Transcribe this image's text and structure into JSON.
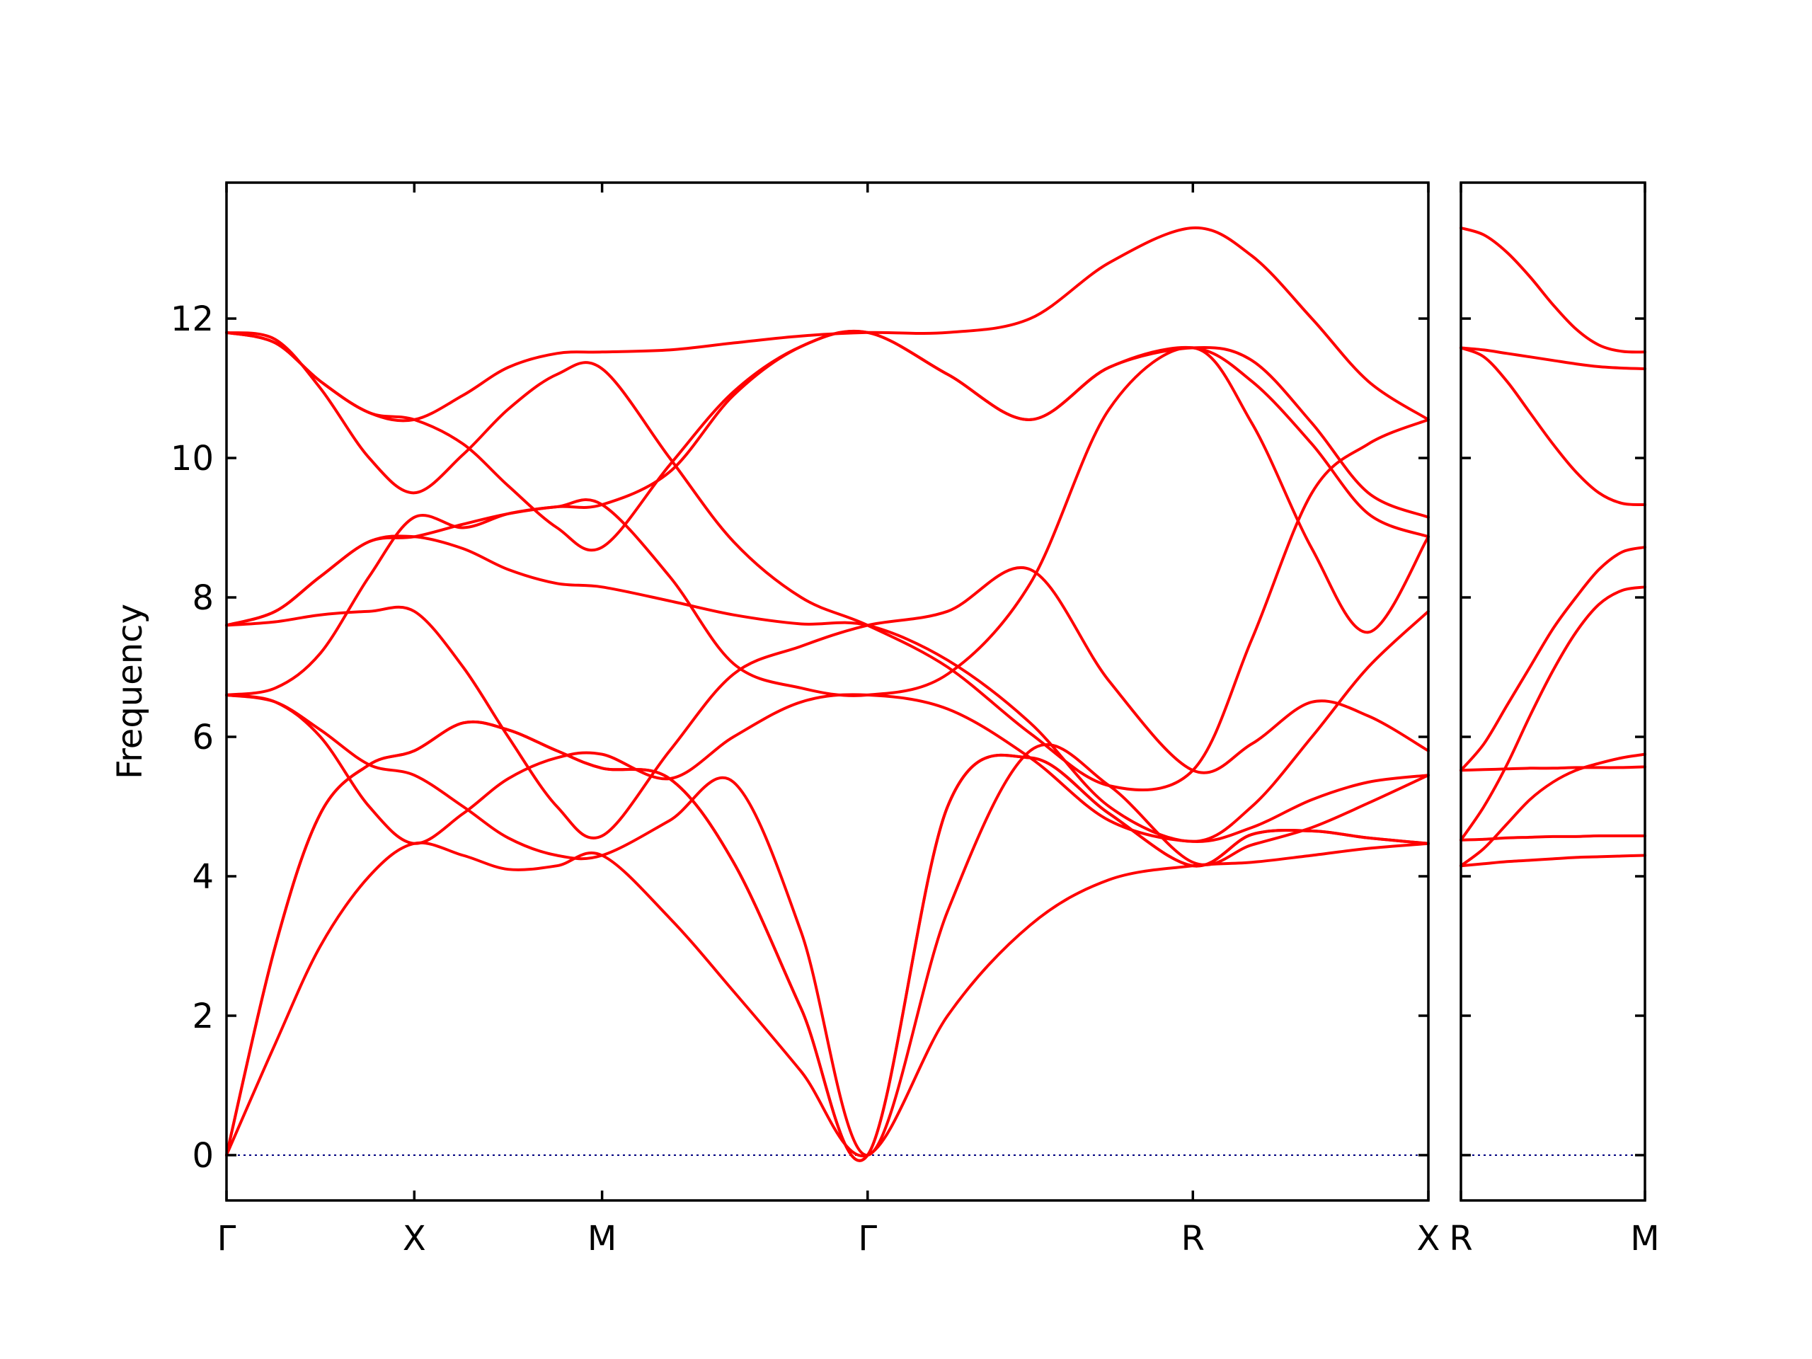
{
  "colors": {
    "band": "#ff0000",
    "zero_line": "#000080",
    "frame": "#000000"
  },
  "chart_data": {
    "type": "line",
    "title": "",
    "xlabel": "",
    "ylabel": "Frequency",
    "ylim": [
      -0.65,
      13.95
    ],
    "grid": false,
    "yticks": [
      0,
      2,
      4,
      6,
      8,
      10,
      12
    ],
    "panels": [
      {
        "name": "left",
        "xlim": [
          0,
          3.2
        ],
        "high_symmetry_points": [
          {
            "label": "Γ",
            "x": 0.0
          },
          {
            "label": "X",
            "x": 0.5
          },
          {
            "label": "M",
            "x": 1.0
          },
          {
            "label": "Γ",
            "x": 1.707
          },
          {
            "label": "R",
            "x": 2.573
          },
          {
            "label": "X",
            "x": 3.2
          }
        ],
        "series": [
          {
            "x": [
              0,
              0.13,
              0.25,
              0.38,
              0.5,
              0.63,
              0.75,
              0.88,
              1.0,
              1.18,
              1.35,
              1.53,
              1.707,
              1.92,
              2.14,
              2.35,
              2.573,
              2.73,
              2.89,
              3.04,
              3.2
            ],
            "y": [
              0,
              1.6,
              3.0,
              4.0,
              4.47,
              4.3,
              4.1,
              4.15,
              4.3,
              3.4,
              2.35,
              1.2,
              0,
              2.0,
              3.3,
              3.95,
              4.15,
              4.2,
              4.3,
              4.4,
              4.47
            ]
          },
          {
            "x": [
              0,
              0.13,
              0.25,
              0.38,
              0.5,
              0.63,
              0.75,
              0.88,
              1.0,
              1.18,
              1.35,
              1.53,
              1.707,
              1.92,
              2.14,
              2.35,
              2.573,
              2.73,
              2.89,
              3.04,
              3.2
            ],
            "y": [
              0,
              3.0,
              4.9,
              5.6,
              5.8,
              6.2,
              6.1,
              5.8,
              5.55,
              5.4,
              4.2,
              2.1,
              0,
              5.0,
              5.7,
              4.9,
              4.15,
              4.6,
              4.65,
              4.55,
              4.47
            ]
          },
          {
            "x": [
              0,
              0.13,
              0.25,
              0.38,
              0.5,
              0.63,
              0.75,
              0.88,
              1.0,
              1.18,
              1.35,
              1.53,
              1.707,
              1.92,
              2.14,
              2.35,
              2.573,
              2.73,
              2.89,
              3.04,
              3.2
            ],
            "y": [
              0,
              3.0,
              4.9,
              5.6,
              5.8,
              6.2,
              6.1,
              5.8,
              5.55,
              5.4,
              4.2,
              2.1,
              0,
              5.0,
              5.7,
              4.9,
              4.15,
              4.6,
              4.65,
              4.55,
              4.47
            ]
          },
          {
            "x": [
              0,
              0.13,
              0.25,
              0.38,
              0.5,
              0.63,
              0.75,
              0.88,
              1.0,
              1.18,
              1.35,
              1.53,
              1.707,
              1.92,
              2.14,
              2.35,
              2.573,
              2.73,
              2.89,
              3.04,
              3.2
            ],
            "y": [
              6.6,
              6.5,
              6.1,
              5.6,
              5.45,
              5.0,
              4.55,
              4.3,
              4.3,
              4.8,
              5.35,
              3.2,
              0,
              3.5,
              5.8,
              5.3,
              4.2,
              4.45,
              4.7,
              5.05,
              5.45
            ]
          },
          {
            "x": [
              0,
              0.13,
              0.25,
              0.38,
              0.5,
              0.63,
              0.75,
              0.88,
              1.0,
              1.18,
              1.35,
              1.53,
              1.707,
              1.92,
              2.14,
              2.35,
              2.573,
              2.73,
              2.89,
              3.04,
              3.2
            ],
            "y": [
              6.6,
              6.5,
              6.0,
              5.0,
              4.47,
              4.9,
              5.4,
              5.7,
              5.75,
              5.4,
              6.0,
              6.5,
              6.6,
              6.4,
              5.7,
              4.8,
              4.5,
              4.7,
              5.1,
              5.35,
              5.45
            ]
          },
          {
            "x": [
              0,
              0.13,
              0.25,
              0.38,
              0.5,
              0.63,
              0.75,
              0.88,
              1.0,
              1.18,
              1.35,
              1.53,
              1.707,
              1.92,
              2.14,
              2.35,
              2.573,
              2.73,
              2.89,
              3.04,
              3.2
            ],
            "y": [
              6.6,
              6.7,
              7.2,
              8.3,
              9.15,
              9.0,
              9.2,
              9.3,
              9.33,
              9.8,
              10.9,
              11.6,
              11.8,
              11.2,
              10.55,
              11.3,
              11.58,
              11.1,
              10.2,
              9.2,
              8.87
            ]
          },
          {
            "x": [
              0,
              0.13,
              0.25,
              0.38,
              0.5,
              0.63,
              0.75,
              0.88,
              1.0,
              1.18,
              1.35,
              1.53,
              1.707,
              1.92,
              2.14,
              2.35,
              2.573,
              2.73,
              2.89,
              3.04,
              3.2
            ],
            "y": [
              7.6,
              7.65,
              7.75,
              7.8,
              7.8,
              7.0,
              6.0,
              5.0,
              4.58,
              5.8,
              6.9,
              7.3,
              7.6,
              7.8,
              8.4,
              6.8,
              5.52,
              5.9,
              6.5,
              6.3,
              5.8
            ]
          },
          {
            "x": [
              0,
              0.13,
              0.25,
              0.38,
              0.5,
              0.63,
              0.75,
              0.88,
              1.0,
              1.18,
              1.35,
              1.53,
              1.707,
              1.92,
              2.14,
              2.35,
              2.573,
              2.73,
              2.89,
              3.04,
              3.2
            ],
            "y": [
              7.6,
              7.8,
              8.3,
              8.8,
              8.87,
              8.7,
              8.4,
              8.2,
              8.15,
              7.95,
              7.75,
              7.62,
              7.6,
              7.1,
              6.2,
              5.0,
              4.5,
              5.0,
              6.0,
              7.0,
              7.8
            ]
          },
          {
            "x": [
              0,
              0.13,
              0.25,
              0.38,
              0.5,
              0.63,
              0.75,
              0.88,
              1.0,
              1.18,
              1.35,
              1.53,
              1.707,
              1.92,
              2.14,
              2.35,
              2.573,
              2.73,
              2.89,
              3.04,
              3.2
            ],
            "y": [
              7.6,
              7.8,
              8.3,
              8.8,
              8.87,
              9.05,
              9.2,
              9.3,
              9.33,
              8.3,
              7.05,
              6.7,
              6.6,
              6.9,
              8.2,
              10.7,
              11.58,
              10.5,
              8.7,
              7.5,
              8.87
            ]
          },
          {
            "x": [
              0,
              0.13,
              0.25,
              0.38,
              0.5,
              0.63,
              0.75,
              0.88,
              1.0,
              1.18,
              1.35,
              1.53,
              1.707,
              1.92,
              2.14,
              2.35,
              2.573,
              2.73,
              2.89,
              3.04,
              3.2
            ],
            "y": [
              11.8,
              11.7,
              11.0,
              10.0,
              9.5,
              10.05,
              10.7,
              11.2,
              11.28,
              10.0,
              8.8,
              8.0,
              7.6,
              7.0,
              6.05,
              5.3,
              5.52,
              7.4,
              9.5,
              10.2,
              10.55
            ]
          },
          {
            "x": [
              0,
              0.13,
              0.25,
              0.38,
              0.5,
              0.63,
              0.75,
              0.88,
              1.0,
              1.18,
              1.35,
              1.53,
              1.707,
              1.92,
              2.14,
              2.35,
              2.573,
              2.73,
              2.89,
              3.04,
              3.2
            ],
            "y": [
              11.8,
              11.65,
              11.1,
              10.65,
              10.55,
              10.2,
              9.6,
              9.0,
              8.72,
              9.9,
              10.95,
              11.6,
              11.8,
              11.2,
              10.55,
              11.3,
              11.58,
              11.4,
              10.5,
              9.5,
              9.15
            ]
          },
          {
            "x": [
              0,
              0.13,
              0.25,
              0.38,
              0.5,
              0.63,
              0.75,
              0.88,
              1.0,
              1.18,
              1.35,
              1.53,
              1.707,
              1.92,
              2.14,
              2.35,
              2.573,
              2.73,
              2.89,
              3.04,
              3.2
            ],
            "y": [
              11.8,
              11.65,
              11.1,
              10.65,
              10.55,
              10.9,
              11.3,
              11.5,
              11.52,
              11.55,
              11.65,
              11.75,
              11.8,
              11.8,
              12.0,
              12.8,
              13.3,
              12.9,
              12.0,
              11.1,
              10.55
            ]
          }
        ]
      },
      {
        "name": "right",
        "xlim": [
          0,
          0.5
        ],
        "high_symmetry_points": [
          {
            "label": "R",
            "x": 0.0
          },
          {
            "label": "M",
            "x": 0.5
          }
        ],
        "series": [
          {
            "x": [
              0,
              0.0625,
              0.125,
              0.1875,
              0.25,
              0.3125,
              0.375,
              0.4375,
              0.5
            ],
            "y": [
              4.15,
              4.18,
              4.21,
              4.23,
              4.25,
              4.27,
              4.28,
              4.29,
              4.3
            ]
          },
          {
            "x": [
              0,
              0.0625,
              0.125,
              0.1875,
              0.25,
              0.3125,
              0.375,
              0.4375,
              0.5
            ],
            "y": [
              4.52,
              4.53,
              4.55,
              4.56,
              4.57,
              4.57,
              4.58,
              4.58,
              4.58
            ]
          },
          {
            "x": [
              0,
              0.0625,
              0.125,
              0.1875,
              0.25,
              0.3125,
              0.375,
              0.4375,
              0.5
            ],
            "y": [
              4.15,
              4.4,
              4.75,
              5.1,
              5.35,
              5.52,
              5.62,
              5.7,
              5.75
            ]
          },
          {
            "x": [
              0,
              0.0625,
              0.125,
              0.1875,
              0.25,
              0.3125,
              0.375,
              0.4375,
              0.5
            ],
            "y": [
              5.52,
              5.53,
              5.54,
              5.55,
              5.55,
              5.56,
              5.56,
              5.56,
              5.57
            ]
          },
          {
            "x": [
              0,
              0.0625,
              0.125,
              0.1875,
              0.25,
              0.3125,
              0.375,
              0.4375,
              0.5
            ],
            "y": [
              4.52,
              5.0,
              5.6,
              6.3,
              6.95,
              7.5,
              7.9,
              8.1,
              8.15
            ]
          },
          {
            "x": [
              0,
              0.0625,
              0.125,
              0.1875,
              0.25,
              0.3125,
              0.375,
              0.4375,
              0.5
            ],
            "y": [
              5.52,
              5.9,
              6.45,
              7.0,
              7.55,
              8.0,
              8.4,
              8.65,
              8.72
            ]
          },
          {
            "x": [
              0,
              0.0625,
              0.125,
              0.1875,
              0.25,
              0.3125,
              0.375,
              0.4375,
              0.5
            ],
            "y": [
              11.58,
              11.45,
              11.1,
              10.65,
              10.2,
              9.8,
              9.5,
              9.35,
              9.33
            ]
          },
          {
            "x": [
              0,
              0.0625,
              0.125,
              0.1875,
              0.25,
              0.3125,
              0.375,
              0.4375,
              0.5
            ],
            "y": [
              11.58,
              11.55,
              11.5,
              11.45,
              11.4,
              11.35,
              11.31,
              11.29,
              11.28
            ]
          },
          {
            "x": [
              0,
              0.0625,
              0.125,
              0.1875,
              0.25,
              0.3125,
              0.375,
              0.4375,
              0.5
            ],
            "y": [
              13.3,
              13.2,
              12.95,
              12.6,
              12.2,
              11.85,
              11.62,
              11.53,
              11.52
            ]
          }
        ]
      }
    ]
  }
}
